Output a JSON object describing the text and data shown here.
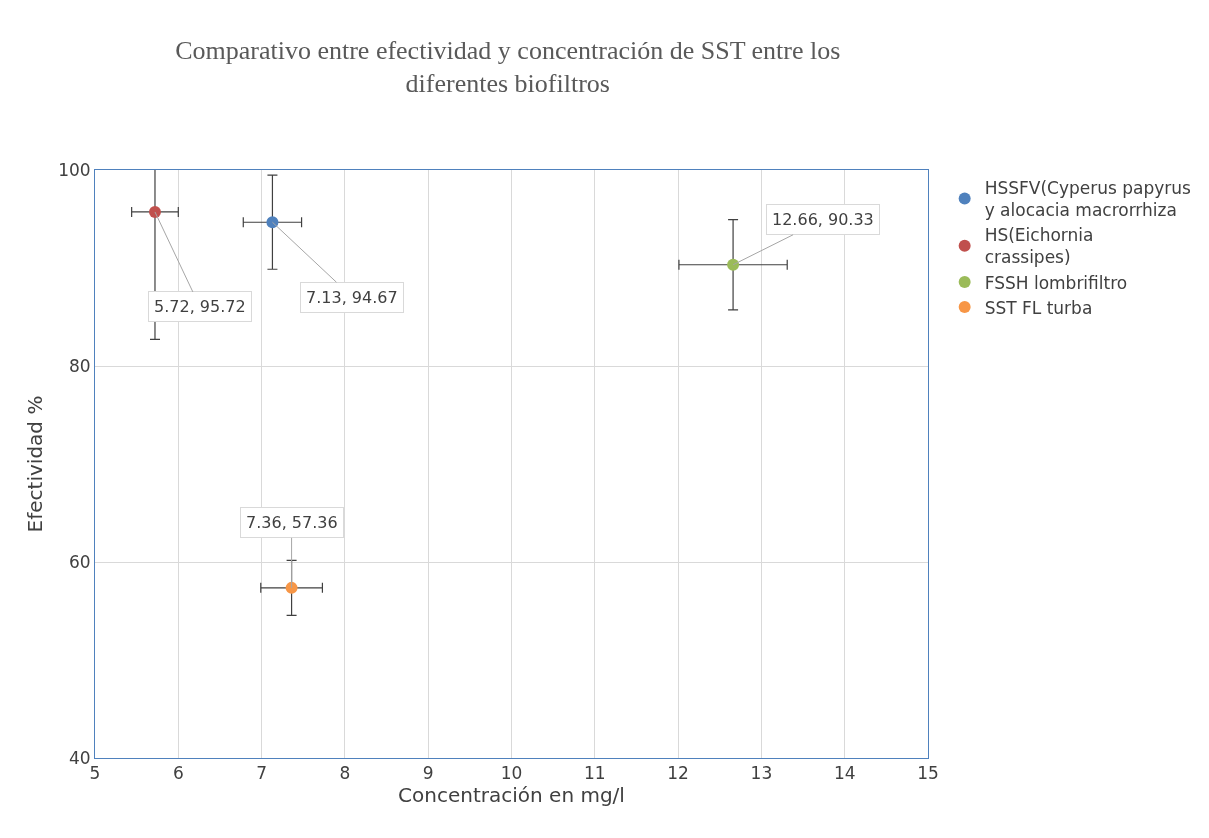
{
  "chart_data": {
    "type": "scatter",
    "title": "Comparativo entre efectividad y concentración de SST entre los diferentes biofiltros",
    "xlabel": "Concentración en mg/l",
    "ylabel": "Efectividad %",
    "series": [
      {
        "name": "HSSFV(Cyperus papyrus y alocacia macrorrhiza",
        "color": "#4f81bd",
        "x": [
          7.13
        ],
        "values": [
          94.67
        ],
        "errors": [
          4.8
        ],
        "xerrors": [
          0.35
        ],
        "value_labels": [
          "7.13, 94.67"
        ]
      },
      {
        "name": "HS(Eichornia crassipes)",
        "color": "#c0504d",
        "x": [
          5.72
        ],
        "values": [
          95.72
        ],
        "errors": [
          13
        ],
        "xerrors": [
          0.28
        ],
        "value_labels": [
          "5.72, 95.72"
        ]
      },
      {
        "name": "FSSH lombrifiltro",
        "color": "#9bbb59",
        "x": [
          12.66
        ],
        "values": [
          90.33
        ],
        "errors": [
          4.6
        ],
        "xerrors": [
          0.65
        ],
        "value_labels": [
          "12.66, 90.33"
        ]
      },
      {
        "name": "SST FL turba",
        "color": "#f79646",
        "x": [
          7.36
        ],
        "values": [
          57.36
        ],
        "errors": [
          2.8
        ],
        "xerrors": [
          0.37
        ],
        "value_labels": [
          "7.36, 57.36"
        ]
      }
    ],
    "xlim": [
      5,
      15
    ],
    "xticks": [
      5,
      6,
      7,
      8,
      9,
      10,
      11,
      12,
      13,
      14,
      15
    ],
    "ylim": [
      40,
      100
    ],
    "yticks": [
      40,
      60,
      80,
      100
    ],
    "grid": true,
    "legend": "right",
    "marker": "circle"
  }
}
